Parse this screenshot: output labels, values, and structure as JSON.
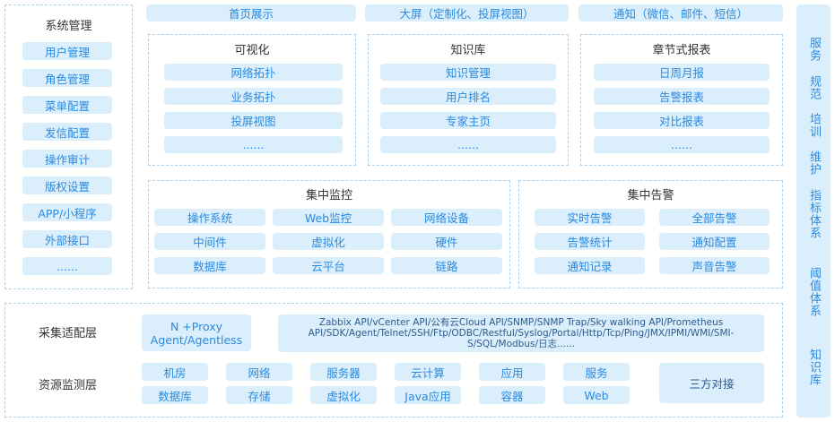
{
  "system_mgmt": {
    "title": "系统管理",
    "items": [
      "用户管理",
      "角色管理",
      "菜单配置",
      "发信配置",
      "操作审计",
      "版权设置",
      "APP/小程序",
      "外部接口",
      "......"
    ]
  },
  "top_bar": [
    "首页展示",
    "大屏（定制化、投屏视图）",
    "通知（微信、邮件、短信）"
  ],
  "visualization": {
    "title": "可视化",
    "items": [
      "网络拓扑",
      "业务拓扑",
      "投屏视图",
      "......"
    ]
  },
  "knowledge_base": {
    "title": "知识库",
    "items": [
      "知识管理",
      "用户排名",
      "专家主页",
      "......"
    ]
  },
  "reports": {
    "title": "章节式报表",
    "items": [
      "日周月报",
      "告警报表",
      "对比报表",
      "......"
    ]
  },
  "monitoring": {
    "title": "集中监控",
    "items": [
      "操作系统",
      "Web监控",
      "网络设备",
      "中间件",
      "虚拟化",
      "硬件",
      "数据库",
      "云平台",
      "链路"
    ]
  },
  "alerts": {
    "title": "集中告警",
    "items": [
      "实时告警",
      "全部告警",
      "告警统计",
      "通知配置",
      "通知记录",
      "声音告警"
    ]
  },
  "collection_layer": {
    "label": "采集适配层",
    "proxy": "N +Proxy\nAgent/Agentless",
    "protocols": "Zabbix API/vCenter API/公有云Cloud API/SNMP/SNMP Trap/Sky walking API/Prometheus API/SDK/Agent/Telnet/SSH/Ftp/ODBC/Restful/Syslog/Portal/Http/Tcp/Ping/JMX/IPMI/WMI/SMI-S/SQL/Modbus/日志......"
  },
  "resource_layer": {
    "label": "资源监测层",
    "items": [
      "机房",
      "网络",
      "服务器",
      "云计算",
      "应用",
      "服务",
      "数据库",
      "存储",
      "虚拟化",
      "Java应用",
      "容器",
      "Web"
    ],
    "third_party": "三方对接"
  },
  "side_bar": [
    "服务",
    "规范",
    "培训",
    "维护",
    "指标体系",
    "阈值体系",
    "知识库"
  ],
  "colors": {
    "box_bg": "#dbeefc",
    "text_blue": "#2a8ae0",
    "border": "#a9d1f0"
  }
}
